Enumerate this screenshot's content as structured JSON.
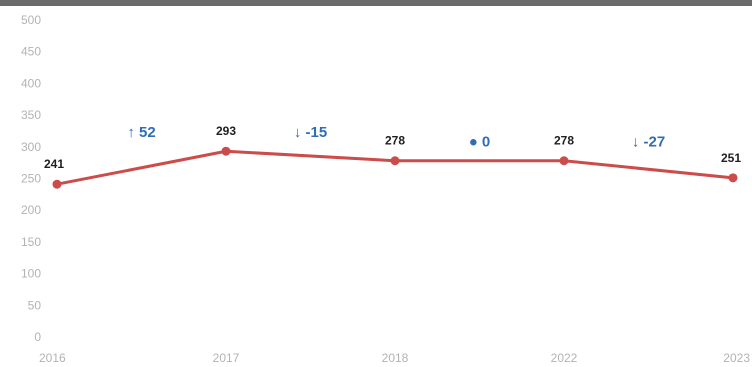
{
  "chart_data": {
    "type": "line",
    "categories": [
      "2016",
      "2017",
      "2018",
      "2022",
      "2023"
    ],
    "series": [
      {
        "values": [
          241,
          293,
          278,
          278,
          251
        ]
      }
    ],
    "value_labels": [
      "241",
      "293",
      "278",
      "278",
      "251"
    ],
    "deltas": [
      {
        "text": "↑ 52"
      },
      {
        "text": "↓ -15"
      },
      {
        "text": "● 0"
      },
      {
        "text": "↓ -27"
      }
    ],
    "ylim": [
      0,
      500
    ],
    "yticks": [
      "0",
      "50",
      "100",
      "150",
      "200",
      "250",
      "300",
      "350",
      "400",
      "450",
      "500"
    ],
    "grid": false,
    "legend": "none",
    "colors": {
      "line": "#cc4b4b",
      "delta": "#2f6db5",
      "top_bar": "#6b6b6b"
    }
  }
}
